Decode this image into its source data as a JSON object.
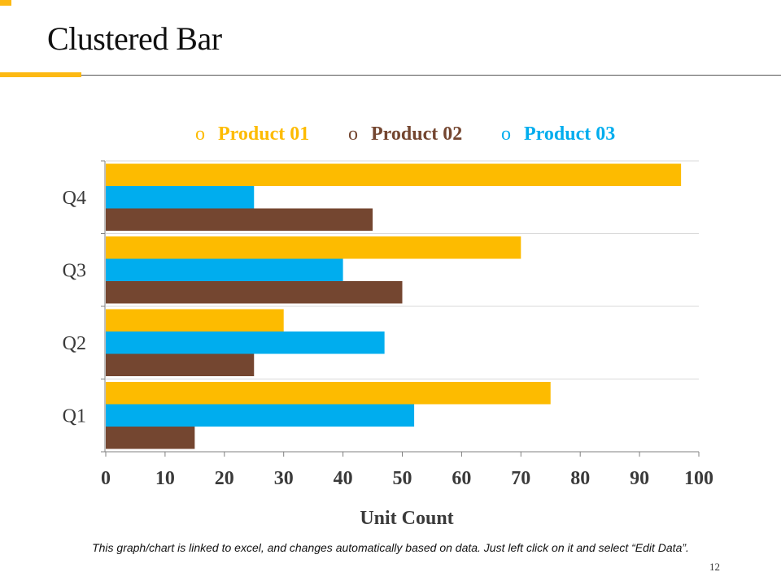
{
  "slide": {
    "title": "Clustered Bar",
    "footnote": "This graph/chart is linked to excel, and changes automatically based on data. Just left click on it and select “Edit Data”.",
    "page_number": "12"
  },
  "colors": {
    "accent": "#FDB913",
    "product_01": "#FDBB00",
    "product_02": "#744630",
    "product_03": "#00ADEE",
    "gridline": "#d9d9d9",
    "axis": "#808080"
  },
  "chart_data": {
    "type": "bar",
    "orientation": "horizontal",
    "title": "",
    "xlabel": "Unit Count",
    "ylabel": "",
    "xlim": [
      0,
      100
    ],
    "x_ticks": [
      0,
      10,
      20,
      30,
      40,
      50,
      60,
      70,
      80,
      90,
      100
    ],
    "categories": [
      "Q1",
      "Q2",
      "Q3",
      "Q4"
    ],
    "legend_position": "top",
    "legend_marker": "o",
    "grid": true,
    "series": [
      {
        "name": "Product 01",
        "color": "#FDBB00",
        "values": [
          75,
          30,
          70,
          97
        ]
      },
      {
        "name": "Product 02",
        "color": "#744630",
        "values": [
          15,
          25,
          50,
          45
        ]
      },
      {
        "name": "Product 03",
        "color": "#00ADEE",
        "values": [
          52,
          47,
          40,
          25
        ]
      }
    ],
    "bar_stack_order_top_to_bottom": [
      "Product 01",
      "Product 03",
      "Product 02"
    ]
  }
}
